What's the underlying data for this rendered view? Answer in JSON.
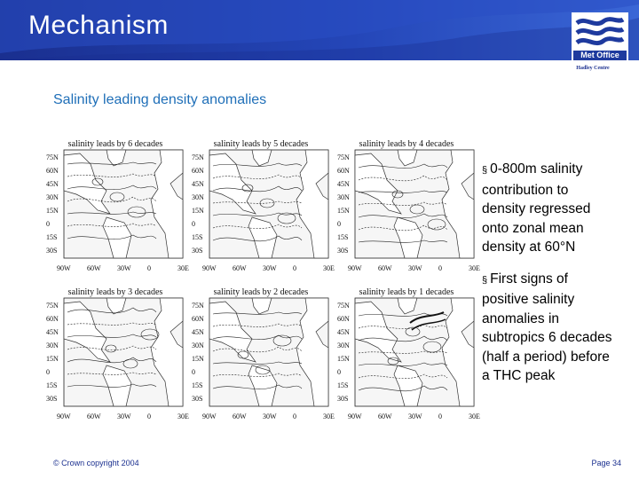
{
  "header": {
    "title": "Mechanism",
    "logo_text": "Met Office",
    "logo_subtext": "Hadley Centre"
  },
  "subtitle": "Salinity leading density anomalies",
  "maps": [
    {
      "title": "salinity leads by 6 decades"
    },
    {
      "title": "salinity leads by 5 decades"
    },
    {
      "title": "salinity leads by 4 decades"
    },
    {
      "title": "salinity leads by 3 decades"
    },
    {
      "title": "salinity leads by 2 decades"
    },
    {
      "title": "salinity leads by 1 decades"
    }
  ],
  "lat_labels": [
    "75N",
    "60N",
    "45N",
    "30N",
    "15N",
    "0",
    "15S",
    "30S"
  ],
  "lon_labels": [
    "90W",
    "60W",
    "30W",
    "0",
    "30E"
  ],
  "bullets": [
    {
      "symbol": "§",
      "text": "0-800m salinity contribution to density regressed onto zonal mean density at 60°N"
    },
    {
      "symbol": "§",
      "text": "First signs of positive salinity anomalies in subtropics 6 decades (half a period) before a THC peak"
    }
  ],
  "footer": {
    "copyright": "© Crown copyright 2004",
    "page": "Page 34"
  },
  "colors": {
    "header_blue": "#2446b8",
    "subtitle_blue": "#1f6fb8",
    "footer_blue": "#1a2f8f"
  }
}
